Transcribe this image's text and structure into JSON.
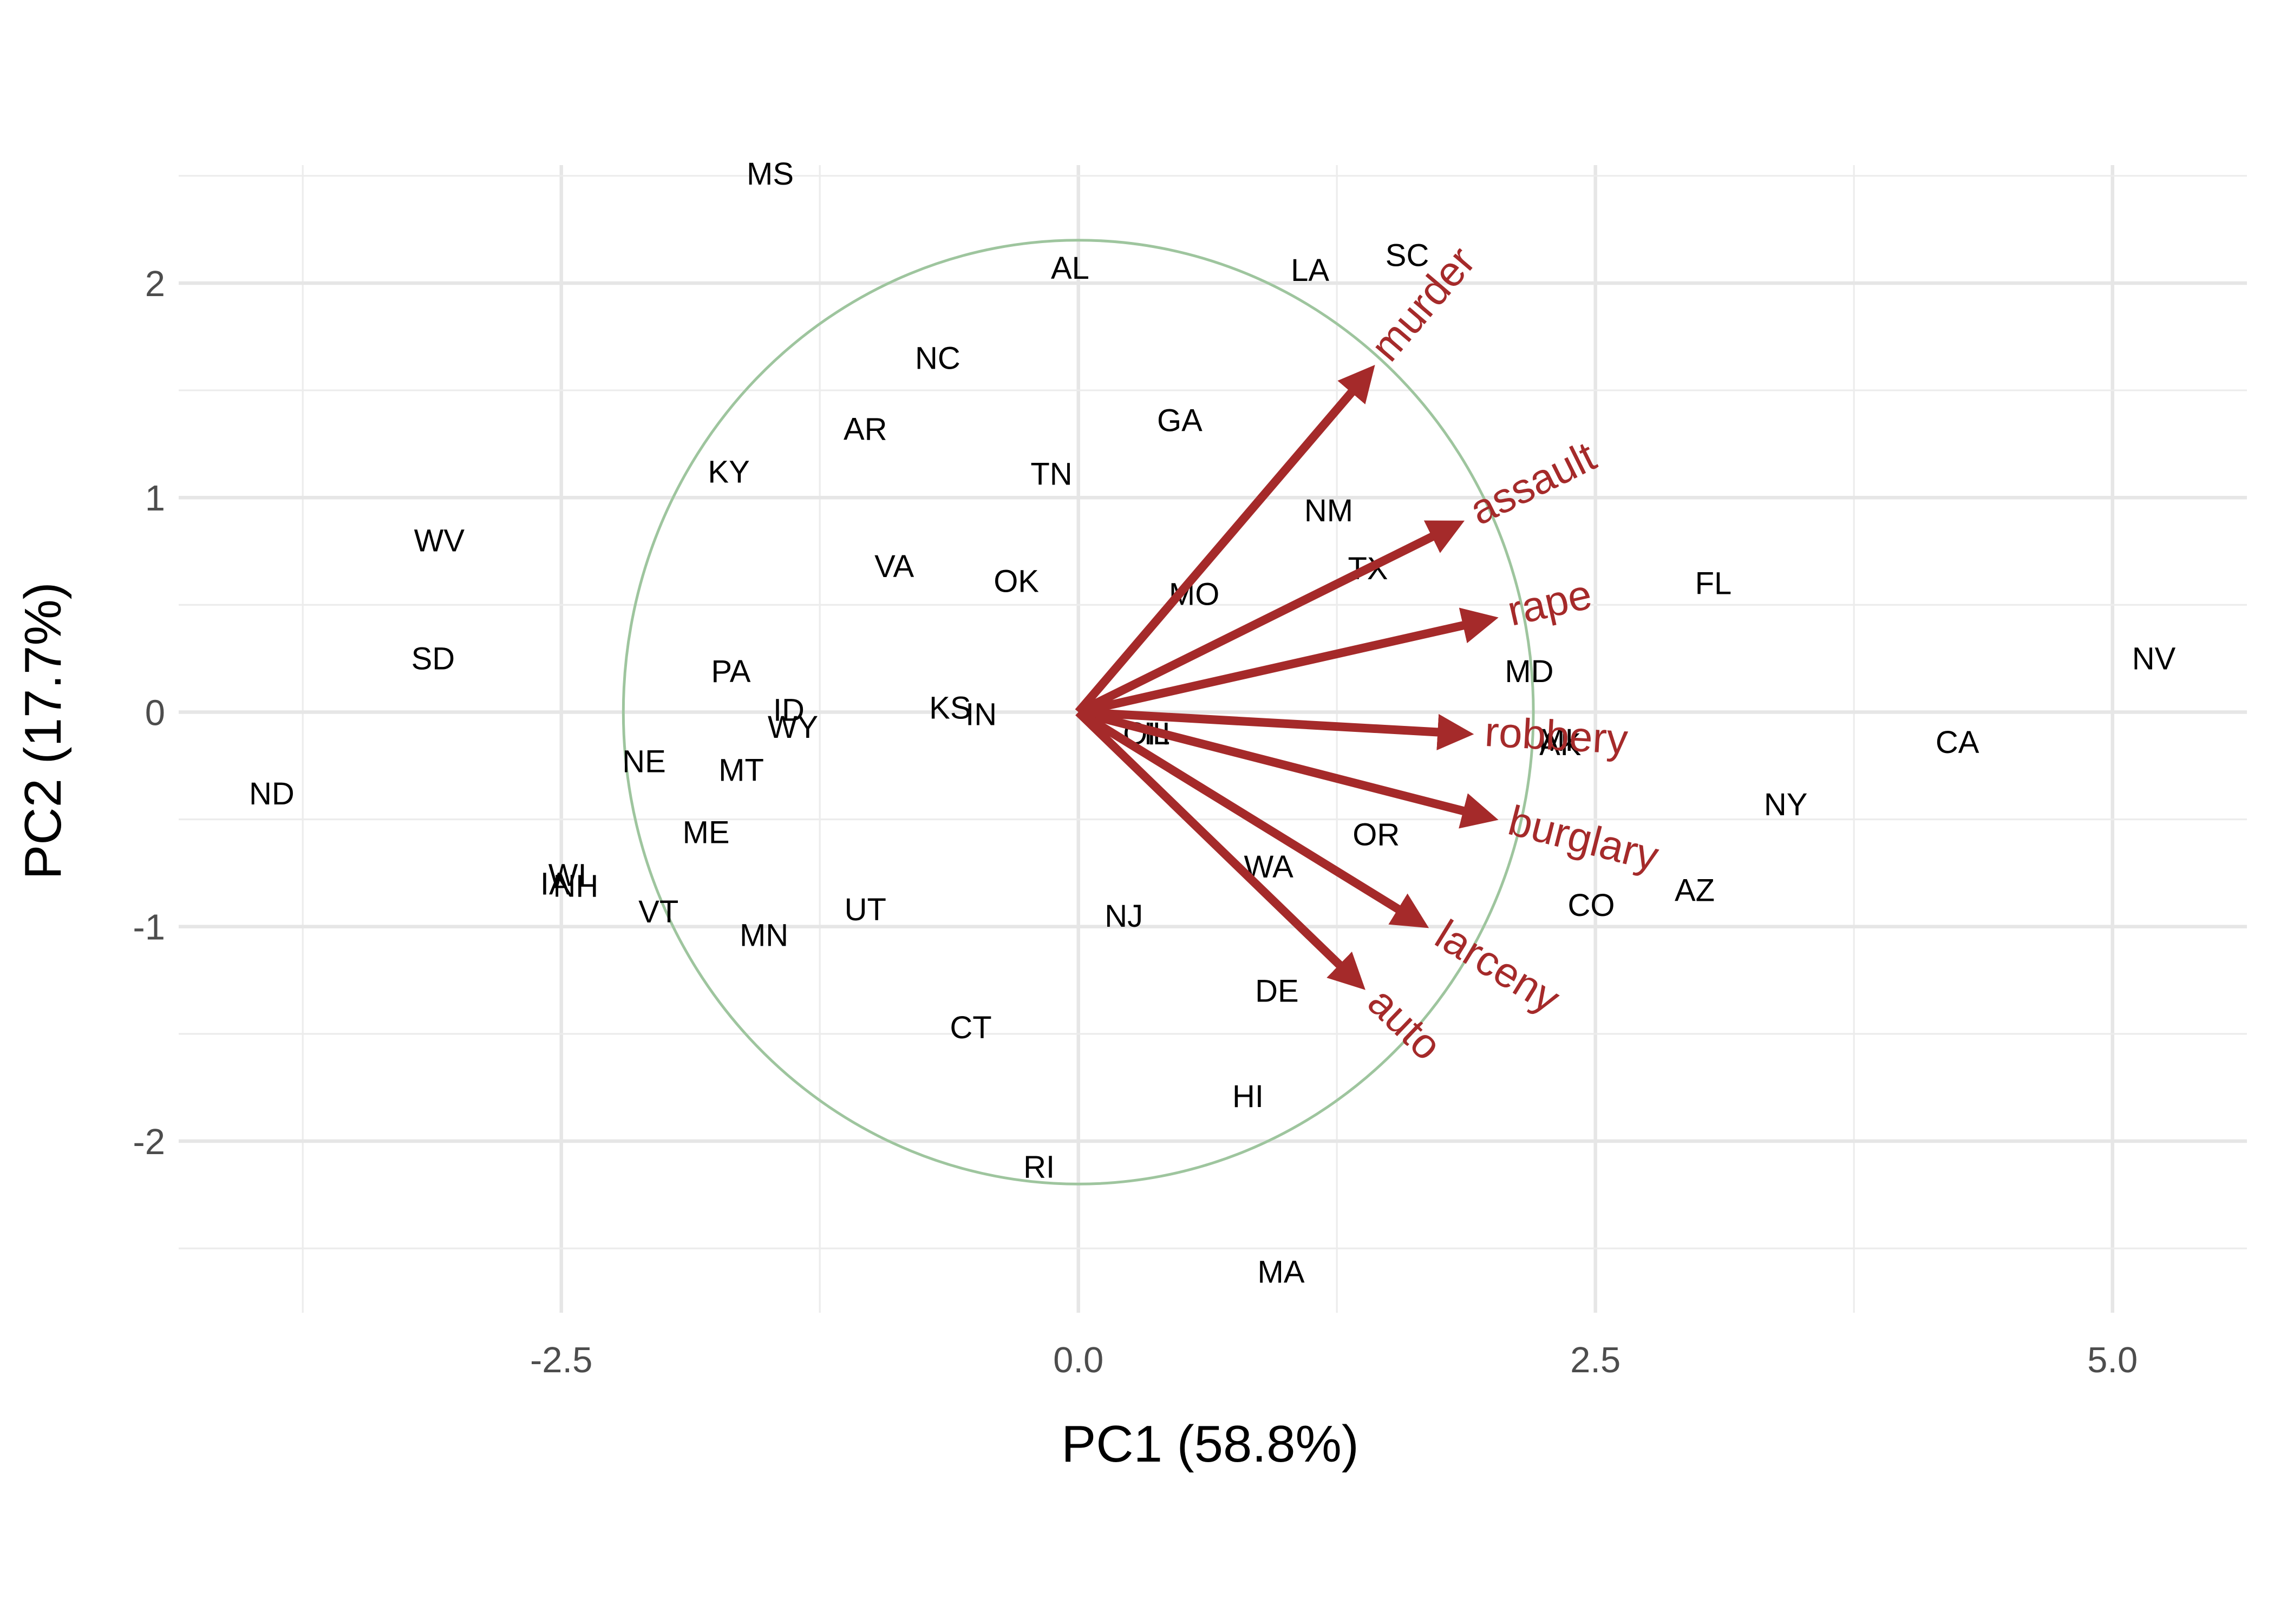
{
  "chart_data": {
    "type": "scatter",
    "subtype": "pca-biplot",
    "xlabel": "PC1 (58.8%)",
    "ylabel": "PC2 (17.7%)",
    "xlim": [
      -4.35,
      5.65
    ],
    "ylim": [
      -2.8,
      2.55
    ],
    "x_ticks": [
      {
        "value": -2.5,
        "label": "-2.5"
      },
      {
        "value": 0,
        "label": "0.0"
      },
      {
        "value": 2.5,
        "label": "2.5"
      },
      {
        "value": 5,
        "label": "5.0"
      }
    ],
    "y_ticks": [
      {
        "value": -2,
        "label": "-2"
      },
      {
        "value": -1,
        "label": "-1"
      },
      {
        "value": 0,
        "label": "0"
      },
      {
        "value": 1,
        "label": "1"
      },
      {
        "value": 2,
        "label": "2"
      }
    ],
    "grid": true,
    "points": [
      {
        "label": "MS",
        "x": -1.49,
        "y": 2.51
      },
      {
        "label": "AL",
        "x": -0.04,
        "y": 2.07
      },
      {
        "label": "LA",
        "x": 1.12,
        "y": 2.06
      },
      {
        "label": "SC",
        "x": 1.59,
        "y": 2.13
      },
      {
        "label": "NC",
        "x": -0.68,
        "y": 1.65
      },
      {
        "label": "AR",
        "x": -1.03,
        "y": 1.32
      },
      {
        "label": "GA",
        "x": 0.49,
        "y": 1.36
      },
      {
        "label": "KY",
        "x": -1.69,
        "y": 1.12
      },
      {
        "label": "TN",
        "x": -0.13,
        "y": 1.11
      },
      {
        "label": "NM",
        "x": 1.21,
        "y": 0.94
      },
      {
        "label": "WV",
        "x": -3.09,
        "y": 0.8
      },
      {
        "label": "VA",
        "x": -0.89,
        "y": 0.68
      },
      {
        "label": "OK",
        "x": -0.3,
        "y": 0.61
      },
      {
        "label": "TX",
        "x": 1.4,
        "y": 0.67
      },
      {
        "label": "MO",
        "x": 0.56,
        "y": 0.55
      },
      {
        "label": "FL",
        "x": 3.07,
        "y": 0.6
      },
      {
        "label": "SD",
        "x": -3.12,
        "y": 0.25
      },
      {
        "label": "PA",
        "x": -1.68,
        "y": 0.19
      },
      {
        "label": "MD",
        "x": 2.18,
        "y": 0.19
      },
      {
        "label": "NV",
        "x": 5.2,
        "y": 0.25
      },
      {
        "label": "ID",
        "x": -1.4,
        "y": 0.01
      },
      {
        "label": "KS",
        "x": -0.62,
        "y": 0.02
      },
      {
        "label": "IN",
        "x": -0.47,
        "y": -0.01
      },
      {
        "label": "WY",
        "x": -1.38,
        "y": -0.07
      },
      {
        "label": "IL",
        "x": 0.38,
        "y": -0.1
      },
      {
        "label": "OH",
        "x": 0.33,
        "y": -0.1
      },
      {
        "label": "MI",
        "x": 2.31,
        "y": -0.13
      },
      {
        "label": "AK",
        "x": 2.33,
        "y": -0.15
      },
      {
        "label": "CA",
        "x": 4.25,
        "y": -0.14
      },
      {
        "label": "NE",
        "x": -2.1,
        "y": -0.23
      },
      {
        "label": "MT",
        "x": -1.63,
        "y": -0.27
      },
      {
        "label": "ND",
        "x": -3.9,
        "y": -0.38
      },
      {
        "label": "NY",
        "x": 3.42,
        "y": -0.43
      },
      {
        "label": "ME",
        "x": -1.8,
        "y": -0.56
      },
      {
        "label": "OR",
        "x": 1.44,
        "y": -0.57
      },
      {
        "label": "WA",
        "x": 0.92,
        "y": -0.72
      },
      {
        "label": "WI",
        "x": -2.47,
        "y": -0.76
      },
      {
        "label": "IA",
        "x": -2.53,
        "y": -0.8
      },
      {
        "label": "NH",
        "x": -2.43,
        "y": -0.81
      },
      {
        "label": "AZ",
        "x": 2.98,
        "y": -0.83
      },
      {
        "label": "CO",
        "x": 2.48,
        "y": -0.9
      },
      {
        "label": "VT",
        "x": -2.03,
        "y": -0.93
      },
      {
        "label": "UT",
        "x": -1.03,
        "y": -0.92
      },
      {
        "label": "NJ",
        "x": 0.22,
        "y": -0.95
      },
      {
        "label": "MN",
        "x": -1.52,
        "y": -1.04
      },
      {
        "label": "DE",
        "x": 0.96,
        "y": -1.3
      },
      {
        "label": "CT",
        "x": -0.52,
        "y": -1.47
      },
      {
        "label": "HI",
        "x": 0.82,
        "y": -1.79
      },
      {
        "label": "RI",
        "x": -0.19,
        "y": -2.12
      },
      {
        "label": "MA",
        "x": 0.98,
        "y": -2.61
      }
    ],
    "circle": {
      "cx": 0,
      "cy": 0,
      "r": 2.2,
      "color": "#9ec59e"
    },
    "loadings": [
      {
        "label": "murder",
        "x": 1.4,
        "y": 1.58
      },
      {
        "label": "assault",
        "x": 1.82,
        "y": 0.87
      },
      {
        "label": "rape",
        "x": 1.98,
        "y": 0.43
      },
      {
        "label": "robbery",
        "x": 1.86,
        "y": -0.1
      },
      {
        "label": "burglary",
        "x": 1.98,
        "y": -0.49
      },
      {
        "label": "larceny",
        "x": 1.65,
        "y": -0.98
      },
      {
        "label": "auto",
        "x": 1.35,
        "y": -1.26
      }
    ],
    "loading_color": "#a52a2a"
  }
}
